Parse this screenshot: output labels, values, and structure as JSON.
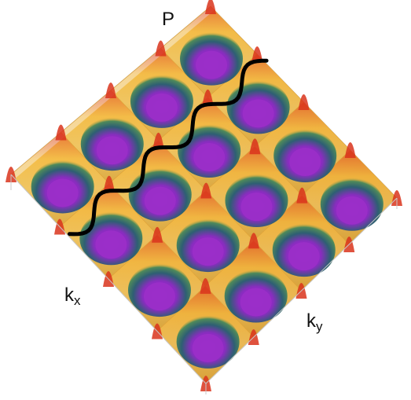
{
  "labels": {
    "vertical": "P",
    "x_main": "k",
    "x_sub": "x",
    "y_main": "k",
    "y_sub": "y"
  },
  "colors": {
    "background": "#ffffff",
    "box_edge": "#c8c8c8",
    "valley": "#9b2fc9",
    "mid": "#2e5f73",
    "high": "#f0b43a",
    "peak": "#d9341c",
    "path": "#000000"
  },
  "surface": {
    "shape": "periodic egg-crate surface",
    "colormap": "purple-green-yellow-red",
    "valleys_rows": 4,
    "valleys_cols": 4
  },
  "path_line": {
    "color": "black",
    "style": "wavy curve across surface"
  }
}
